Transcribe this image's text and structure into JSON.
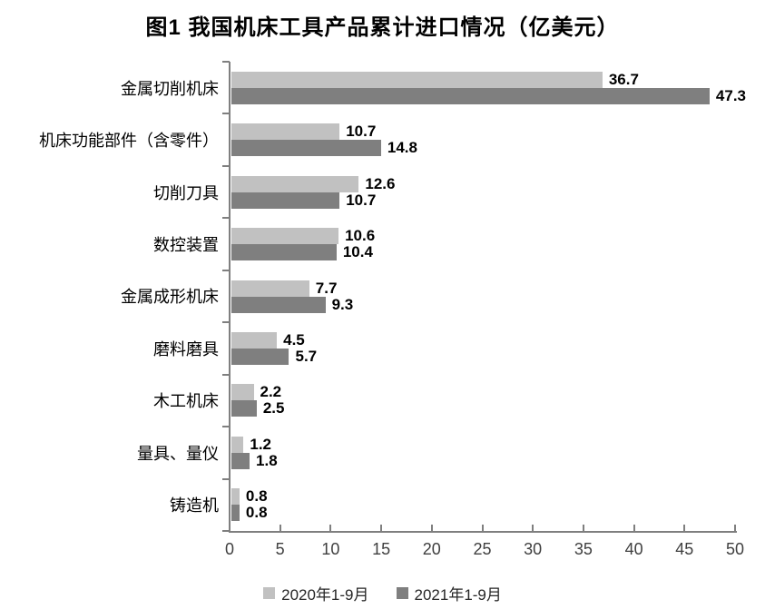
{
  "chart_data": {
    "type": "bar",
    "orientation": "horizontal",
    "title": "图1 我国机床工具产品累计进口情况（亿美元）",
    "unit_note": "亿美元",
    "categories": [
      "金属切削机床",
      "机床功能部件（含零件）",
      "切削刀具",
      "数控装置",
      "金属成形机床",
      "磨料磨具",
      "木工机床",
      "量具、量仪",
      "铸造机"
    ],
    "series": [
      {
        "name": "2020年1-9月",
        "color": "#c1c1c1",
        "values": [
          36.7,
          10.7,
          12.6,
          10.6,
          7.7,
          4.5,
          2.2,
          1.2,
          0.8
        ]
      },
      {
        "name": "2021年1-9月",
        "color": "#7f7f7f",
        "values": [
          47.3,
          14.8,
          10.7,
          10.4,
          9.3,
          5.7,
          2.5,
          1.8,
          0.8
        ]
      }
    ],
    "xlim": [
      0,
      50
    ],
    "xticks": [
      0,
      5,
      10,
      15,
      20,
      25,
      30,
      35,
      40,
      45,
      50
    ],
    "grid": false,
    "legend_position": "bottom",
    "value_labels_decimals": 1,
    "axis_color": "#7f7f7f",
    "tick_label_color": "#3f3f3f"
  }
}
